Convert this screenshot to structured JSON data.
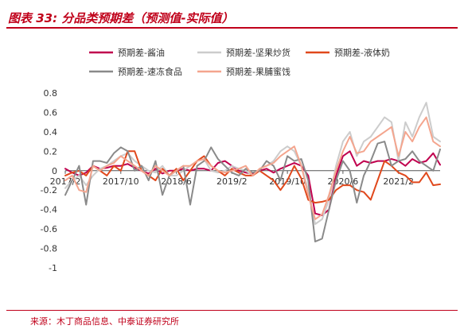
{
  "figure": {
    "title": "图表 33:  分品类预期差（预测值-实际值）",
    "source": "来源：木丁商品信息、中泰证券研究所"
  },
  "colors": {
    "accent": "#c0001a",
    "series": [
      "#c0004e",
      "#cccccc",
      "#e0481c",
      "#8a8a8a",
      "#f4a58e"
    ]
  },
  "chart_data": {
    "type": "line",
    "title": "",
    "xlabel": "",
    "ylabel": "",
    "ylim": [
      -1,
      0.8
    ],
    "y_ticks": [
      -1,
      -0.8,
      -0.6,
      -0.4,
      -0.2,
      0,
      0.2,
      0.4,
      0.6,
      0.8
    ],
    "x_ticks": [
      "2017/2",
      "2017/10",
      "2018/6",
      "2019/2",
      "2019/10",
      "2020/6",
      "2021/2"
    ],
    "x": [
      "2017/2",
      "2017/3",
      "2017/4",
      "2017/5",
      "2017/6",
      "2017/7",
      "2017/8",
      "2017/9",
      "2017/10",
      "2017/11",
      "2017/12",
      "2018/1",
      "2018/2",
      "2018/3",
      "2018/4",
      "2018/5",
      "2018/6",
      "2018/7",
      "2018/8",
      "2018/9",
      "2018/10",
      "2018/11",
      "2018/12",
      "2019/1",
      "2019/2",
      "2019/3",
      "2019/4",
      "2019/5",
      "2019/6",
      "2019/7",
      "2019/8",
      "2019/9",
      "2019/10",
      "2019/11",
      "2019/12",
      "2020/1",
      "2020/2",
      "2020/3",
      "2020/4",
      "2020/5",
      "2020/6",
      "2020/7",
      "2020/8",
      "2020/9",
      "2020/10",
      "2020/11",
      "2020/12",
      "2021/1",
      "2021/2",
      "2021/3",
      "2021/4",
      "2021/5",
      "2021/6",
      "2021/7",
      "2021/8"
    ],
    "legend_position": "top",
    "grid": false,
    "series": [
      {
        "name": "预期差-酱油",
        "values": [
          0.02,
          -0.02,
          -0.05,
          -0.02,
          0.05,
          0.02,
          0.03,
          0.05,
          0.05,
          0.07,
          0.03,
          0.0,
          -0.03,
          0.02,
          -0.03,
          0.0,
          0.0,
          0.02,
          0.0,
          0.02,
          0.02,
          0.0,
          0.08,
          0.1,
          0.05,
          0.0,
          -0.02,
          -0.03,
          0.0,
          0.02,
          -0.02,
          0.02,
          0.05,
          0.08,
          0.05,
          -0.05,
          -0.44,
          -0.46,
          -0.4,
          -0.05,
          0.15,
          0.2,
          0.05,
          0.1,
          0.08,
          0.1,
          0.1,
          0.12,
          0.1,
          0.05,
          0.12,
          0.08,
          0.1,
          0.18,
          0.06
        ]
      },
      {
        "name": "预期差-坚果炒货",
        "values": [
          -0.18,
          -0.1,
          -0.05,
          -0.15,
          -0.05,
          0.02,
          0.05,
          0.1,
          0.15,
          0.18,
          0.1,
          0.05,
          0.0,
          -0.02,
          0.05,
          -0.05,
          -0.05,
          0.0,
          0.05,
          0.1,
          0.12,
          0.0,
          -0.02,
          0.0,
          0.05,
          0.02,
          0.0,
          -0.05,
          0.02,
          0.05,
          0.1,
          0.2,
          0.25,
          0.2,
          0.05,
          -0.2,
          -0.55,
          -0.5,
          -0.3,
          0.05,
          0.3,
          0.4,
          0.15,
          0.3,
          0.35,
          0.45,
          0.55,
          0.5,
          0.1,
          0.5,
          0.35,
          0.55,
          0.7,
          0.35,
          0.3
        ]
      },
      {
        "name": "预期差-液体奶",
        "values": [
          -0.05,
          -0.02,
          0.0,
          -0.05,
          0.05,
          0.0,
          -0.05,
          0.05,
          0.0,
          0.2,
          0.2,
          0.0,
          -0.05,
          -0.1,
          0.02,
          -0.05,
          0.02,
          -0.1,
          0.0,
          0.1,
          0.15,
          0.05,
          0.0,
          -0.05,
          0.02,
          -0.02,
          -0.05,
          -0.05,
          0.0,
          -0.05,
          -0.1,
          -0.2,
          -0.1,
          0.05,
          -0.08,
          -0.3,
          -0.33,
          -0.32,
          -0.3,
          -0.2,
          -0.15,
          -0.15,
          -0.2,
          -0.22,
          -0.3,
          -0.1,
          0.1,
          0.05,
          -0.02,
          -0.05,
          -0.12,
          -0.12,
          -0.02,
          -0.15,
          -0.14
        ]
      },
      {
        "name": "预期差-速冻食品",
        "values": [
          -0.25,
          -0.1,
          0.05,
          -0.35,
          0.1,
          0.1,
          0.08,
          0.18,
          0.24,
          0.2,
          0.0,
          0.05,
          -0.1,
          0.1,
          -0.25,
          -0.05,
          0.0,
          0.05,
          -0.35,
          0.05,
          0.1,
          0.24,
          0.12,
          0.05,
          -0.02,
          -0.05,
          0.02,
          -0.02,
          0.0,
          0.1,
          0.05,
          -0.1,
          0.15,
          0.1,
          0.12,
          -0.1,
          -0.73,
          -0.7,
          -0.4,
          -0.1,
          0.1,
          0.0,
          -0.33,
          -0.05,
          0.1,
          0.28,
          0.3,
          0.05,
          0.1,
          0.12,
          0.2,
          0.1,
          0.05,
          0.0,
          0.22
        ]
      },
      {
        "name": "预期差-果脯蜜饯",
        "values": [
          -0.1,
          -0.05,
          -0.2,
          -0.22,
          0.05,
          0.0,
          0.05,
          0.08,
          0.15,
          0.1,
          0.05,
          0.0,
          -0.05,
          0.05,
          0.0,
          -0.05,
          0.0,
          0.05,
          0.05,
          0.1,
          0.12,
          0.05,
          0.0,
          -0.02,
          0.0,
          0.02,
          0.05,
          -0.05,
          0.02,
          0.05,
          0.08,
          0.15,
          0.2,
          0.25,
          0.05,
          -0.25,
          -0.5,
          -0.45,
          -0.25,
          0.0,
          0.2,
          0.35,
          0.18,
          0.2,
          0.3,
          0.35,
          0.4,
          0.45,
          0.15,
          0.4,
          0.3,
          0.45,
          0.55,
          0.3,
          0.25
        ]
      }
    ]
  }
}
